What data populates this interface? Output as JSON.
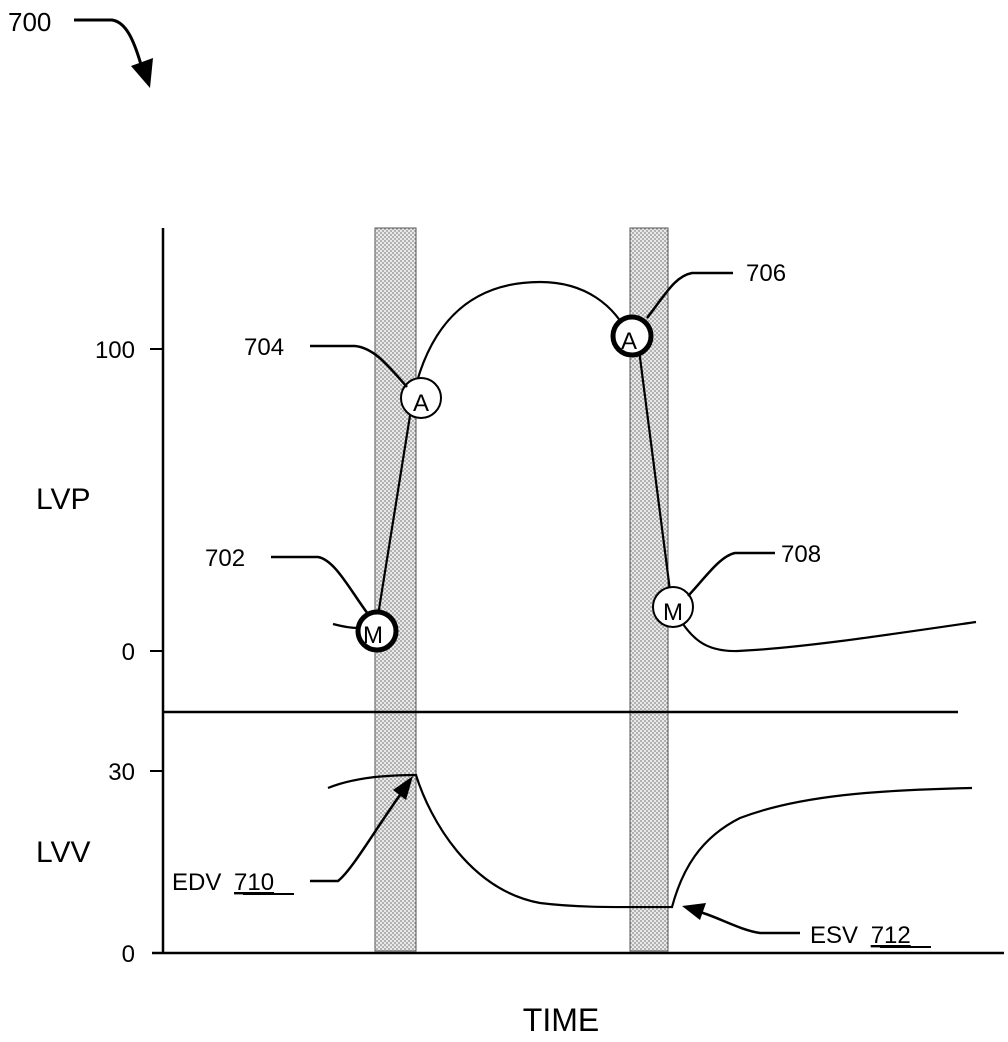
{
  "figure_ref": "700",
  "axes": {
    "x_label": "TIME",
    "upper_y_label": "LVP",
    "lower_y_label": "LVV",
    "upper_ticks": [
      "100",
      "0"
    ],
    "lower_ticks": [
      "30",
      "0"
    ]
  },
  "markers": [
    {
      "ref": "702",
      "letter": "M",
      "emphasis": "bold"
    },
    {
      "ref": "704",
      "letter": "A",
      "emphasis": "normal"
    },
    {
      "ref": "706",
      "letter": "A",
      "emphasis": "bold"
    },
    {
      "ref": "708",
      "letter": "M",
      "emphasis": "normal"
    }
  ],
  "callouts": [
    {
      "prefix": "EDV",
      "ref": "710"
    },
    {
      "prefix": "ESV",
      "ref": "712"
    }
  ],
  "chart_data": {
    "type": "line",
    "panels": [
      {
        "name": "LVP",
        "y_ticks": [
          0,
          100
        ],
        "series": [
          {
            "x": [
              0.0,
              0.05,
              0.1,
              0.2,
              0.3,
              0.35,
              0.42,
              0.5,
              0.55,
              0.6,
              0.62,
              0.65,
              0.7,
              0.8,
              1.0
            ],
            "y": [
              8,
              6,
              50,
              90,
              118,
              122,
              120,
              112,
              105,
              68,
              15,
              8,
              2,
              3,
              10
            ]
          }
        ]
      },
      {
        "name": "LVV",
        "y_ticks": [
          0,
          30
        ],
        "series": [
          {
            "x": [
              0.0,
              0.05,
              0.1,
              0.2,
              0.3,
              0.42,
              0.5,
              0.55,
              0.6,
              0.62,
              0.7,
              0.8,
              1.0
            ],
            "y": [
              27,
              29,
              30,
              16,
              8,
              7,
              7,
              7,
              7,
              8,
              19,
              24,
              28
            ]
          }
        ]
      }
    ]
  }
}
